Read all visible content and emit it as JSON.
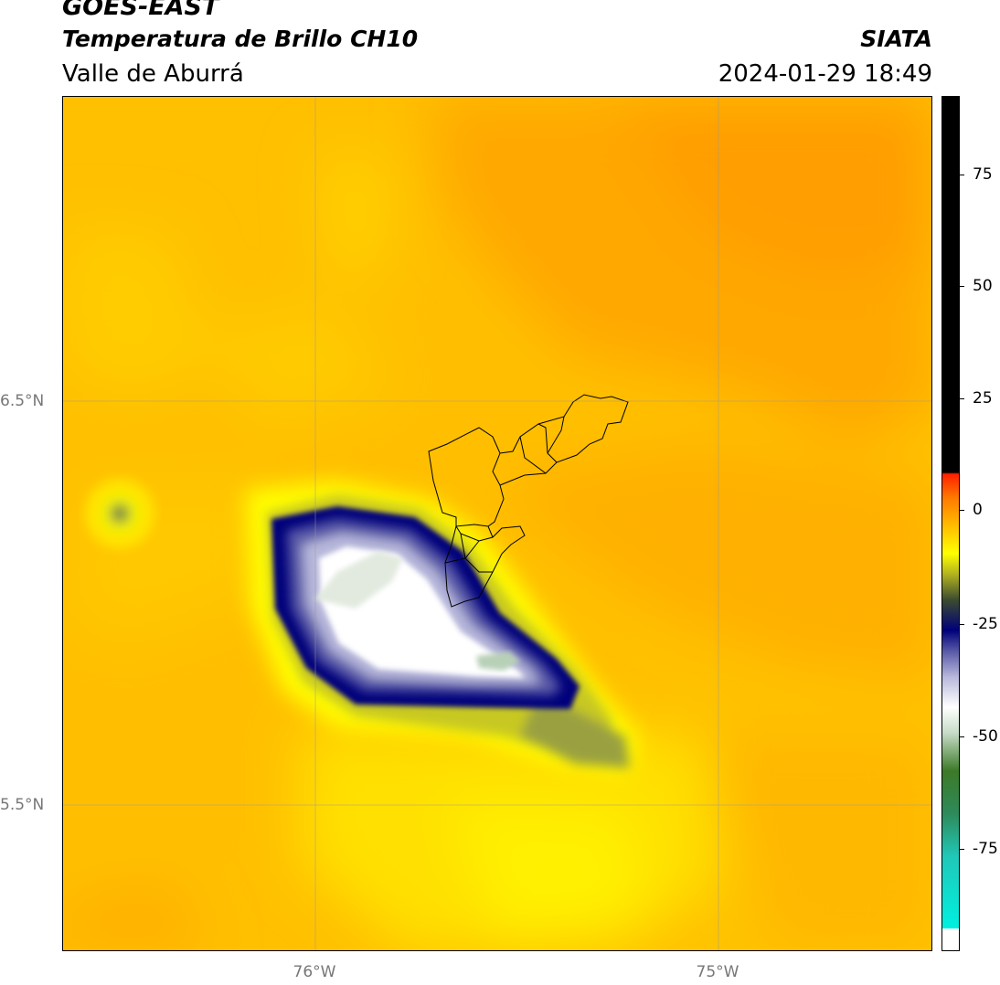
{
  "header": {
    "satellite": "GOES-EAST",
    "product": "Temperatura de Brillo CH10",
    "region": "Valle de Aburrá",
    "agency": "SIATA",
    "timestamp": "2024-01-29 18:49"
  },
  "axes": {
    "lat_labels": [
      "6.5°N",
      "5.5°N"
    ],
    "lon_labels": [
      "76°W",
      "75°W"
    ]
  },
  "colorbar": {
    "ticks": [
      "75",
      "50",
      "25",
      "0",
      "-25",
      "-50",
      "-75"
    ]
  },
  "colors": {
    "background_field": "#ffc200",
    "cold_core": "#ffffff",
    "cloud_edge": "#00007a"
  }
}
